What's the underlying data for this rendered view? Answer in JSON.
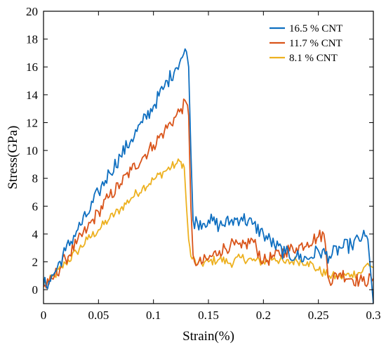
{
  "chart_data": {
    "type": "line",
    "xlabel": "Strain(%)",
    "ylabel": "Stress(GPa)",
    "xlim": [
      0,
      0.3
    ],
    "ylim": [
      -1,
      20
    ],
    "xticks": [
      0,
      0.05,
      0.1,
      0.15,
      0.2,
      0.25,
      0.3
    ],
    "xtick_labels": [
      "0",
      "0.05",
      "0.1",
      "0.15",
      "0.2",
      "0.25",
      "0.3"
    ],
    "yticks": [
      0,
      2,
      4,
      6,
      8,
      10,
      12,
      14,
      16,
      18,
      20
    ],
    "ytick_labels": [
      "0",
      "2",
      "4",
      "6",
      "8",
      "10",
      "12",
      "14",
      "16",
      "18",
      "20"
    ],
    "grid": false,
    "legend_position": "top-right",
    "series": [
      {
        "name": "16.5 % CNT",
        "color": "#0f6fc0",
        "x": [
          0,
          0.005,
          0.01,
          0.02,
          0.03,
          0.04,
          0.05,
          0.06,
          0.07,
          0.08,
          0.09,
          0.1,
          0.11,
          0.12,
          0.125,
          0.13,
          0.132,
          0.134,
          0.136,
          0.14,
          0.15,
          0.16,
          0.17,
          0.18,
          0.19,
          0.2,
          0.21,
          0.22,
          0.23,
          0.24,
          0.25,
          0.26,
          0.27,
          0.28,
          0.29,
          0.295,
          0.3
        ],
        "y": [
          0.3,
          0.6,
          1.2,
          2.8,
          4.2,
          5.4,
          7.0,
          8.4,
          9.6,
          10.8,
          12.0,
          13.2,
          14.6,
          15.9,
          16.6,
          17.1,
          16.0,
          10.0,
          5.0,
          4.8,
          5.0,
          4.6,
          4.9,
          5.2,
          4.7,
          4.0,
          3.2,
          2.6,
          2.4,
          2.2,
          2.8,
          2.4,
          3.0,
          3.2,
          3.8,
          3.6,
          -1.0
        ]
      },
      {
        "name": "11.7 % CNT",
        "color": "#d9541a",
        "x": [
          0,
          0.005,
          0.01,
          0.02,
          0.03,
          0.04,
          0.05,
          0.06,
          0.07,
          0.08,
          0.09,
          0.1,
          0.11,
          0.12,
          0.125,
          0.13,
          0.132,
          0.134,
          0.136,
          0.14,
          0.15,
          0.16,
          0.17,
          0.18,
          0.19,
          0.2,
          0.21,
          0.22,
          0.23,
          0.24,
          0.25,
          0.255,
          0.26,
          0.27,
          0.28,
          0.29,
          0.3
        ],
        "y": [
          0.2,
          0.4,
          1.0,
          2.2,
          3.3,
          4.4,
          5.6,
          6.7,
          7.6,
          8.6,
          9.5,
          10.4,
          11.4,
          12.4,
          13.0,
          13.4,
          12.5,
          6.0,
          2.5,
          1.8,
          2.2,
          2.8,
          3.2,
          3.0,
          3.6,
          2.0,
          2.4,
          2.8,
          3.0,
          3.4,
          3.8,
          4.0,
          0.6,
          1.2,
          0.8,
          0.6,
          0.8
        ]
      },
      {
        "name": "8.1 % CNT",
        "color": "#edb120",
        "x": [
          0,
          0.005,
          0.01,
          0.02,
          0.03,
          0.04,
          0.05,
          0.06,
          0.07,
          0.08,
          0.09,
          0.1,
          0.11,
          0.12,
          0.125,
          0.128,
          0.13,
          0.132,
          0.134,
          0.14,
          0.15,
          0.16,
          0.17,
          0.18,
          0.19,
          0.2,
          0.21,
          0.22,
          0.23,
          0.24,
          0.25,
          0.26,
          0.27,
          0.28,
          0.29,
          0.295,
          0.3
        ],
        "y": [
          0.4,
          0.6,
          1.0,
          1.9,
          2.7,
          3.6,
          4.3,
          5.1,
          5.8,
          6.6,
          7.3,
          7.9,
          8.5,
          9.0,
          9.2,
          8.8,
          6.0,
          3.6,
          2.4,
          1.8,
          2.0,
          2.2,
          1.9,
          2.3,
          2.1,
          2.0,
          2.3,
          1.9,
          2.1,
          2.0,
          1.4,
          1.0,
          0.9,
          1.1,
          1.3,
          1.9,
          1.6
        ]
      }
    ]
  }
}
